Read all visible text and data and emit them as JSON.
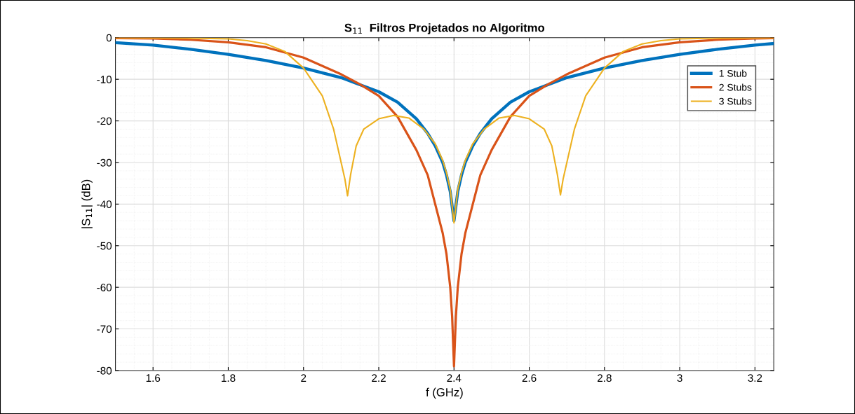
{
  "chart_data": {
    "type": "line",
    "title": "S$_{11}$  Filtros Projetados no Algoritmo",
    "xlabel": "f (GHz)",
    "ylabel": "|S$_{11}$| (dB)",
    "xlim": [
      1.5,
      3.25
    ],
    "ylim": [
      -80,
      0
    ],
    "xticks": [
      1.6,
      1.8,
      2,
      2.2,
      2.4,
      2.6,
      2.8,
      3,
      3.2
    ],
    "yticks": [
      -80,
      -70,
      -60,
      -50,
      -40,
      -30,
      -20,
      -10,
      0
    ],
    "grid": true,
    "legend": "top right",
    "line_style": "solid",
    "marker": "none",
    "series": [
      {
        "name": "1 Stub",
        "color": "#0072bd",
        "x": [
          1.5,
          1.6,
          1.7,
          1.8,
          1.9,
          2.0,
          2.1,
          2.2,
          2.25,
          2.3,
          2.33,
          2.35,
          2.37,
          2.38,
          2.39,
          2.4,
          2.41,
          2.42,
          2.43,
          2.45,
          2.47,
          2.5,
          2.55,
          2.6,
          2.7,
          2.8,
          2.9,
          3.0,
          3.1,
          3.2,
          3.25
        ],
        "values": [
          -1.2,
          -1.8,
          -2.8,
          -4,
          -5.5,
          -7.3,
          -9.6,
          -13,
          -15.5,
          -19.5,
          -23,
          -26,
          -30,
          -33,
          -37,
          -44,
          -37,
          -33,
          -30,
          -26,
          -23,
          -19.5,
          -15.5,
          -13,
          -9.6,
          -7.3,
          -5.5,
          -4,
          -2.8,
          -1.8,
          -1.4
        ]
      },
      {
        "name": "2 Stubs",
        "color": "#d95319",
        "x": [
          1.5,
          1.6,
          1.7,
          1.8,
          1.9,
          2.0,
          2.1,
          2.15,
          2.2,
          2.25,
          2.3,
          2.33,
          2.35,
          2.37,
          2.38,
          2.39,
          2.395,
          2.4,
          2.405,
          2.41,
          2.42,
          2.43,
          2.45,
          2.47,
          2.5,
          2.55,
          2.6,
          2.65,
          2.7,
          2.8,
          2.9,
          3.0,
          3.1,
          3.2,
          3.25
        ],
        "values": [
          -0.1,
          -0.2,
          -0.5,
          -1.1,
          -2.3,
          -4.8,
          -8.8,
          -11.2,
          -14,
          -19,
          -27,
          -33,
          -40,
          -47,
          -52,
          -60,
          -67,
          -79,
          -67,
          -60,
          -52,
          -47,
          -40,
          -33,
          -27,
          -19,
          -14,
          -11.2,
          -8.8,
          -4.8,
          -2.3,
          -1.1,
          -0.5,
          -0.2,
          -0.1
        ]
      },
      {
        "name": "3 Stubs",
        "color": "#edb120",
        "x": [
          1.5,
          1.7,
          1.8,
          1.85,
          1.9,
          1.95,
          2.0,
          2.05,
          2.08,
          2.1,
          2.11,
          2.117,
          2.125,
          2.14,
          2.16,
          2.2,
          2.24,
          2.28,
          2.32,
          2.35,
          2.37,
          2.38,
          2.39,
          2.4,
          2.41,
          2.42,
          2.43,
          2.45,
          2.48,
          2.52,
          2.56,
          2.6,
          2.64,
          2.66,
          2.675,
          2.683,
          2.69,
          2.7,
          2.72,
          2.75,
          2.8,
          2.85,
          2.9,
          2.95,
          3.0,
          3.1,
          3.25
        ],
        "values": [
          0,
          -0.1,
          -0.3,
          -0.7,
          -1.5,
          -3.3,
          -7.3,
          -14,
          -22,
          -30,
          -34,
          -38,
          -33,
          -26,
          -22,
          -19.5,
          -18.7,
          -19.3,
          -22,
          -25.5,
          -29.5,
          -32.5,
          -36.5,
          -44.5,
          -36.5,
          -32.5,
          -29.5,
          -25.5,
          -22,
          -19.3,
          -18.7,
          -19.5,
          -22,
          -26,
          -33,
          -37.8,
          -34,
          -30,
          -22,
          -14,
          -7.3,
          -3.3,
          -1.5,
          -0.7,
          -0.3,
          -0.1,
          0
        ]
      }
    ]
  }
}
